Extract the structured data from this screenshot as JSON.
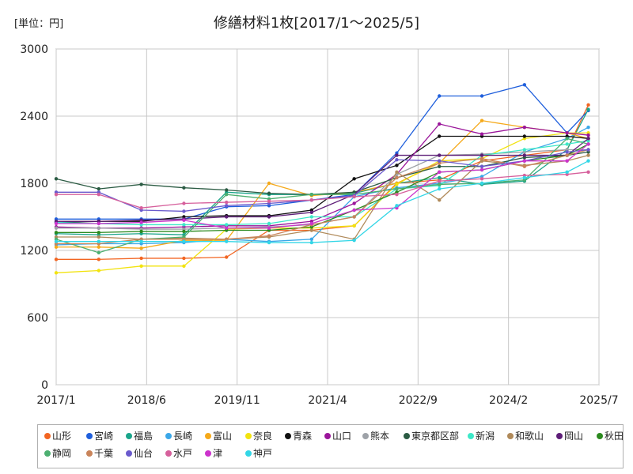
{
  "chart_data": {
    "type": "line",
    "title": "修繕材料1枚[2017/1～2025/5]",
    "unit_label": "[単位：円]",
    "xlabel": "",
    "ylabel": "",
    "ylim": [
      0,
      3000
    ],
    "y_ticks": [
      "0",
      "600",
      "1200",
      "1800",
      "2400",
      "3000"
    ],
    "x_ticks": [
      {
        "label": "2017/1",
        "t": 0
      },
      {
        "label": "2018/6",
        "t": 17
      },
      {
        "label": "2019/11",
        "t": 34
      },
      {
        "label": "2021/4",
        "t": 51
      },
      {
        "label": "2022/9",
        "t": 68
      },
      {
        "label": "2024/2",
        "t": 85
      },
      {
        "label": "2025/7",
        "t": 102
      }
    ],
    "x_range_months": [
      0,
      102
    ],
    "x_points_months": [
      0,
      8,
      16,
      24,
      32,
      40,
      48,
      56,
      64,
      72,
      80,
      88,
      96,
      100
    ],
    "grid": true,
    "legend_position": "bottom",
    "series": [
      {
        "name": "山形",
        "color": "#f26522",
        "values": [
          1120,
          1120,
          1130,
          1130,
          1140,
          1380,
          1380,
          1420,
          1800,
          1830,
          2000,
          2050,
          2100,
          2500
        ]
      },
      {
        "name": "宮崎",
        "color": "#1f5fdc",
        "values": [
          1480,
          1480,
          1480,
          1480,
          1590,
          1600,
          1650,
          1700,
          2070,
          2580,
          2580,
          2680,
          2250,
          2450
        ]
      },
      {
        "name": "福島",
        "color": "#1aa58a",
        "values": [
          1350,
          1340,
          1350,
          1340,
          1720,
          1700,
          1700,
          1710,
          1800,
          1850,
          1790,
          1820,
          2100,
          2460
        ]
      },
      {
        "name": "長崎",
        "color": "#3aa7e8",
        "values": [
          1250,
          1260,
          1260,
          1270,
          1300,
          1280,
          1300,
          1680,
          1760,
          1800,
          1860,
          2080,
          2200,
          2300
        ]
      },
      {
        "name": "富山",
        "color": "#f5a91a",
        "values": [
          1230,
          1230,
          1220,
          1290,
          1290,
          1800,
          1690,
          1720,
          1800,
          1980,
          2360,
          2300,
          2250,
          2200
        ]
      },
      {
        "name": "奈良",
        "color": "#f2e30f",
        "values": [
          1000,
          1020,
          1060,
          1060,
          1390,
          1400,
          1400,
          1420,
          1790,
          2000,
          2020,
          2200,
          2250,
          2250
        ]
      },
      {
        "name": "青森",
        "color": "#111111",
        "values": [
          1450,
          1460,
          1460,
          1500,
          1510,
          1510,
          1560,
          1840,
          1960,
          2220,
          2220,
          2220,
          2220,
          2200
        ]
      },
      {
        "name": "山口",
        "color": "#9a159a",
        "values": [
          1410,
          1400,
          1400,
          1410,
          1420,
          1420,
          1460,
          1620,
          1880,
          2330,
          2240,
          2300,
          2250,
          2230
        ]
      },
      {
        "name": "熊本",
        "color": "#9ea2a8",
        "values": [
          1400,
          1400,
          1390,
          1390,
          1400,
          1410,
          1430,
          1500,
          1880,
          2050,
          2060,
          2080,
          2100,
          2100
        ]
      },
      {
        "name": "東京都区部",
        "color": "#2b5b43",
        "values": [
          1840,
          1750,
          1790,
          1760,
          1740,
          1710,
          1700,
          1720,
          1850,
          1950,
          1950,
          2030,
          2050,
          2080
        ]
      },
      {
        "name": "新潟",
        "color": "#3de8c8",
        "values": [
          1450,
          1440,
          1430,
          1430,
          1430,
          1440,
          1500,
          1500,
          1750,
          1780,
          2050,
          2100,
          2150,
          2180
        ]
      },
      {
        "name": "和歌山",
        "color": "#b08a5a",
        "values": [
          1320,
          1320,
          1300,
          1310,
          1300,
          1320,
          1380,
          1300,
          1900,
          1650,
          2000,
          1960,
          2000,
          2050
        ]
      },
      {
        "name": "岡山",
        "color": "#5e1e78",
        "values": [
          1460,
          1460,
          1470,
          1480,
          1500,
          1500,
          1540,
          1700,
          2050,
          2050,
          2050,
          2050,
          2050,
          2200
        ]
      },
      {
        "name": "秋田",
        "color": "#2c8a1f",
        "values": [
          1360,
          1360,
          1370,
          1370,
          1380,
          1380,
          1410,
          1560,
          1720,
          1900,
          1920,
          2000,
          2050,
          2150
        ]
      },
      {
        "name": "静岡",
        "color": "#4caf70",
        "values": [
          1300,
          1180,
          1300,
          1320,
          1700,
          1660,
          1700,
          1700,
          1750,
          1790,
          1800,
          1830,
          2200,
          2150
        ]
      },
      {
        "name": "千葉",
        "color": "#c9845a",
        "values": [
          1260,
          1260,
          1300,
          1300,
          1300,
          1330,
          1430,
          1500,
          1850,
          1980,
          2020,
          1950,
          2050,
          2100
        ]
      },
      {
        "name": "仙台",
        "color": "#6a5acd",
        "values": [
          1720,
          1720,
          1560,
          1550,
          1600,
          1620,
          1650,
          1690,
          2010,
          2000,
          1950,
          2000,
          2080,
          2100
        ]
      },
      {
        "name": "水戸",
        "color": "#d6609c",
        "values": [
          1700,
          1700,
          1580,
          1620,
          1630,
          1640,
          1650,
          1680,
          1700,
          1820,
          1840,
          1870,
          1880,
          1900
        ]
      },
      {
        "name": "津",
        "color": "#cc33cc",
        "values": [
          1440,
          1440,
          1450,
          1470,
          1400,
          1400,
          1440,
          1560,
          1580,
          1900,
          1920,
          2000,
          2000,
          2150
        ]
      },
      {
        "name": "神戸",
        "color": "#33d6e6",
        "values": [
          1280,
          1280,
          1280,
          1280,
          1280,
          1270,
          1270,
          1290,
          1600,
          1750,
          1800,
          1850,
          1900,
          2000
        ]
      }
    ]
  }
}
